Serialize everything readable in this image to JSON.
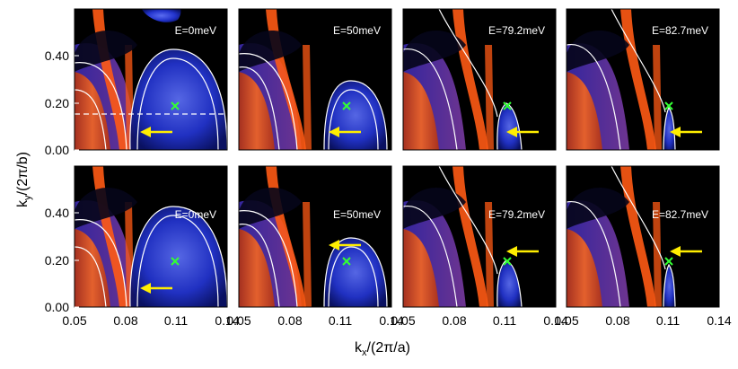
{
  "figure": {
    "xlabel": {
      "main": "k",
      "sub": "x",
      "rest": "/(2π/a)"
    },
    "ylabel": {
      "main": "k",
      "sub": "y",
      "rest": "/(2π/b)"
    },
    "x_ticks": [
      "0.05",
      "0.08",
      "0.11",
      "0.14"
    ],
    "y_ticks": [
      "0.00",
      "0.20",
      "0.40"
    ],
    "rows": 2,
    "panels": [
      {
        "energy_label": "E=0meV"
      },
      {
        "energy_label": "E=50meV"
      },
      {
        "energy_label": "E=79.2meV"
      },
      {
        "energy_label": "E=82.7meV"
      },
      {
        "energy_label": "E=0meV"
      },
      {
        "energy_label": "E=50meV"
      },
      {
        "energy_label": "E=79.2meV"
      },
      {
        "energy_label": "E=82.7meV"
      }
    ],
    "colors": {
      "background": "#000000",
      "band_blue": "#1f2fd0",
      "band_orange": "#ff5a14",
      "contour": "#ffffff",
      "arrow": "#ffee00",
      "cross": "#33ff33",
      "cut_line": "#ffffff"
    }
  }
}
